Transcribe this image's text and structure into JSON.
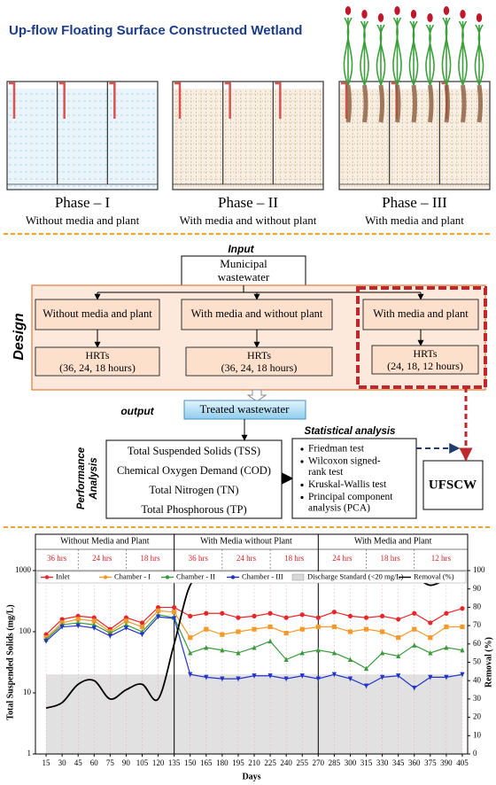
{
  "header": {
    "title": "Up-flow Floating Surface Constructed Wetland"
  },
  "phases": [
    {
      "name": "Phase – I",
      "description": "Without media and plant"
    },
    {
      "name": "Phase – II",
      "description": "With media and without plant"
    },
    {
      "name": "Phase – III",
      "description": "With media and plant"
    }
  ],
  "flow": {
    "input_label": "Input",
    "input": [
      "Municipal",
      "wastewater"
    ],
    "design_label": "Design",
    "designs": [
      {
        "name": "Without media and plant",
        "hrt_title": "HRTs",
        "hrt": "(36, 24, 18 hours)"
      },
      {
        "name": "With media and without plant",
        "hrt_title": "HRTs",
        "hrt": "(36, 24, 18 hours)"
      },
      {
        "name": "With media and plant",
        "hrt_title": "HRTs",
        "hrt": "(24, 18, 12 hours)"
      }
    ],
    "output_label": "output",
    "output": "Treated wastewater",
    "performance_label": [
      "Performance",
      "Analysis"
    ],
    "performance": [
      "Total Suspended Solids (TSS)",
      "Chemical Oxygen Demand (COD)",
      "Total Nitrogen (TN)",
      "Total Phosphorous (TP)"
    ],
    "statistical_label": "Statistical analysis",
    "statistical": [
      [
        "Friedman test"
      ],
      [
        "Wilcoxon signed-",
        "rank test"
      ],
      [
        "Kruskal-Wallis test"
      ],
      [
        "Principal component",
        "analysis (PCA)"
      ]
    ],
    "result": "UFSCW"
  },
  "chart_data": {
    "type": "line",
    "periods": [
      {
        "name": "Without Media and Plant",
        "hrts": [
          "36 hrs",
          "24 hrs",
          "18 hrs"
        ]
      },
      {
        "name": "With Media without Plant",
        "hrts": [
          "36 hrs",
          "24 hrs",
          "18 hrs"
        ]
      },
      {
        "name": "With Media and Plant",
        "hrts": [
          "24 hrs",
          "18 hrs",
          "12 hrs"
        ]
      }
    ],
    "x_label": "Days",
    "y_label": "Total Suspended Solids (mg/L)",
    "y2_label": "Removal (%)",
    "x": [
      15,
      30,
      45,
      60,
      75,
      90,
      105,
      120,
      135,
      150,
      165,
      180,
      195,
      210,
      225,
      240,
      255,
      270,
      285,
      300,
      315,
      330,
      345,
      360,
      375,
      390,
      405
    ],
    "xlim": [
      5,
      410
    ],
    "xticks": [
      15,
      30,
      45,
      60,
      75,
      90,
      105,
      120,
      135,
      150,
      165,
      180,
      195,
      210,
      225,
      240,
      255,
      270,
      285,
      300,
      315,
      330,
      345,
      360,
      375,
      390,
      405
    ],
    "ylim": [
      1,
      1000
    ],
    "yticks": [
      1,
      10,
      100,
      1000
    ],
    "log_y": true,
    "y2lim": [
      0,
      100
    ],
    "y2ticks": [
      0,
      10,
      20,
      30,
      40,
      50,
      60,
      70,
      80,
      90,
      100
    ],
    "legend": "top",
    "series": [
      {
        "name": "Inlet",
        "color": "#e8262a",
        "marker": "circle",
        "values": [
          90,
          160,
          180,
          170,
          110,
          170,
          140,
          250,
          250,
          180,
          200,
          200,
          170,
          180,
          200,
          170,
          190,
          170,
          210,
          180,
          170,
          180,
          160,
          200,
          140,
          200,
          240
        ]
      },
      {
        "name": "Chamber - I",
        "color": "#f39a2b",
        "marker": "square",
        "values": [
          80,
          140,
          160,
          150,
          100,
          150,
          120,
          220,
          210,
          80,
          110,
          90,
          100,
          110,
          120,
          95,
          110,
          120,
          120,
          100,
          110,
          100,
          80,
          110,
          80,
          120,
          120
        ]
      },
      {
        "name": "Chamber - II",
        "color": "#3a9a3c",
        "marker": "triangle",
        "values": [
          75,
          130,
          140,
          130,
          95,
          130,
          100,
          190,
          170,
          45,
          55,
          50,
          45,
          55,
          70,
          35,
          45,
          50,
          45,
          35,
          25,
          45,
          40,
          60,
          45,
          55,
          50
        ]
      },
      {
        "name": "Chamber - III",
        "color": "#2234c8",
        "marker": "down",
        "values": [
          70,
          120,
          125,
          115,
          85,
          115,
          90,
          175,
          165,
          20,
          18,
          17,
          17,
          19,
          19,
          17,
          19,
          17,
          20,
          17,
          13,
          18,
          19,
          12,
          18,
          18,
          20
        ]
      },
      {
        "name": "Discharge Standard (<20 mg/L)",
        "color": "#d9d9d9",
        "area": true,
        "values": [
          20,
          20,
          20,
          20,
          20,
          20,
          20,
          20,
          20,
          20,
          20,
          20,
          20,
          20,
          20,
          20,
          20,
          20,
          20,
          20,
          20,
          20,
          20,
          20,
          20,
          20,
          20
        ]
      },
      {
        "name": "Removal (%)",
        "color": "#000000",
        "axis": "y2",
        "smooth": true,
        "values": [
          25,
          28,
          38,
          40,
          30,
          35,
          38,
          30,
          60,
          92,
          95,
          95,
          95,
          95,
          95,
          95,
          95,
          95,
          96,
          96,
          95,
          95,
          94,
          96,
          92,
          95,
          96
        ]
      }
    ]
  }
}
